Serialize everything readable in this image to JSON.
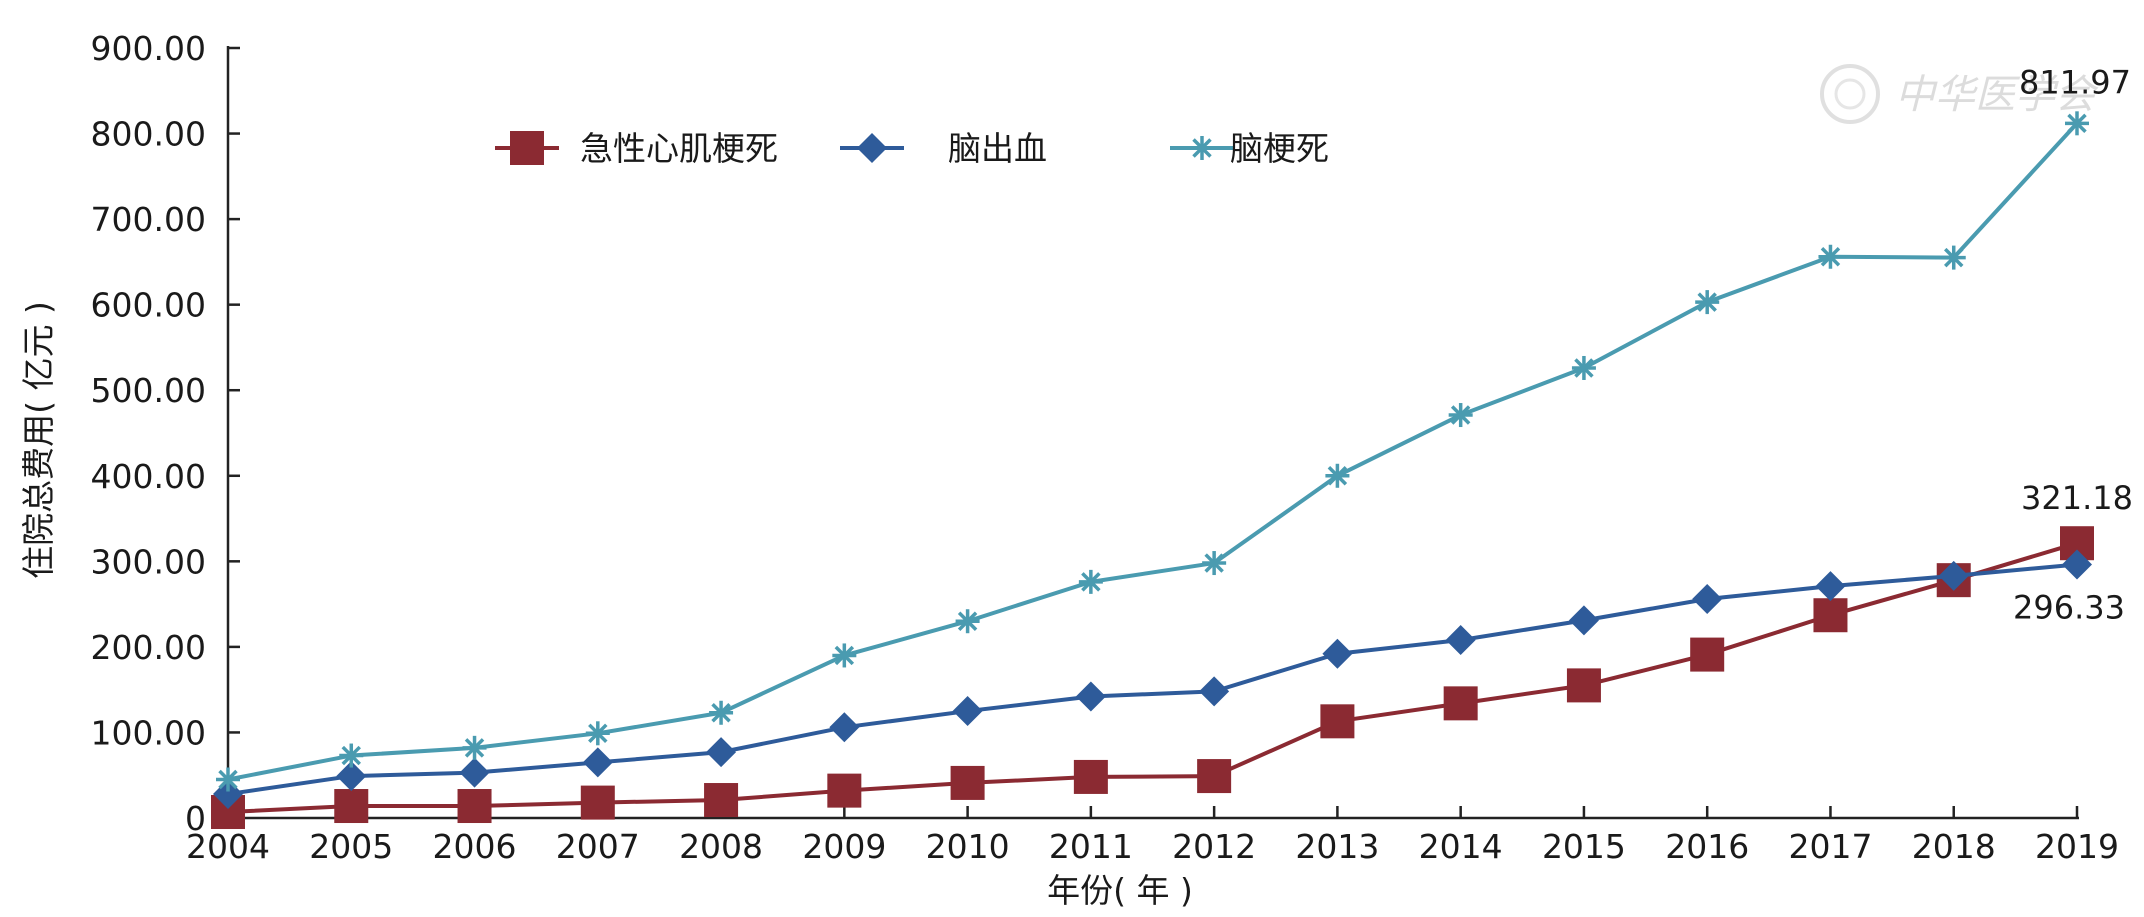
{
  "chart_data": {
    "type": "line",
    "categories": [
      "2004",
      "2005",
      "2006",
      "2007",
      "2008",
      "2009",
      "2010",
      "2011",
      "2012",
      "2013",
      "2014",
      "2015",
      "2016",
      "2017",
      "2018",
      "2019"
    ],
    "series": [
      {
        "name": "急性心肌梗死",
        "color": "#8b2a32",
        "marker": "square",
        "values": [
          7,
          14,
          14,
          18,
          21,
          32,
          41,
          48,
          49,
          113,
          134,
          155,
          191,
          237,
          278,
          321.18
        ]
      },
      {
        "name": "脑出血",
        "color": "#2e5b9a",
        "marker": "diamond",
        "values": [
          28,
          49,
          53,
          65,
          77,
          106,
          125,
          142,
          148,
          192,
          208,
          231,
          256,
          271,
          283,
          296.33
        ]
      },
      {
        "name": "脑梗死",
        "color": "#4a9bb0",
        "marker": "asterisk",
        "values": [
          45,
          73,
          82,
          99,
          123,
          190,
          230,
          276,
          298,
          400,
          471,
          526,
          603,
          656,
          655,
          811.97
        ]
      }
    ],
    "data_labels": [
      {
        "series": 2,
        "index": 15,
        "text": "811.97"
      },
      {
        "series": 0,
        "index": 15,
        "text": "321.18"
      },
      {
        "series": 1,
        "index": 15,
        "text": "296.33"
      }
    ],
    "y_ticks": [
      "0",
      "100.00",
      "200.00",
      "300.00",
      "400.00",
      "500.00",
      "600.00",
      "700.00",
      "800.00",
      "900.00"
    ],
    "ylim": [
      0,
      900
    ],
    "xlabel": "年份( 年 )",
    "ylabel": "住院总费用( 亿元 )",
    "legend_position": "top-left",
    "grid": false
  },
  "watermark": {
    "text": "中华医学会"
  }
}
